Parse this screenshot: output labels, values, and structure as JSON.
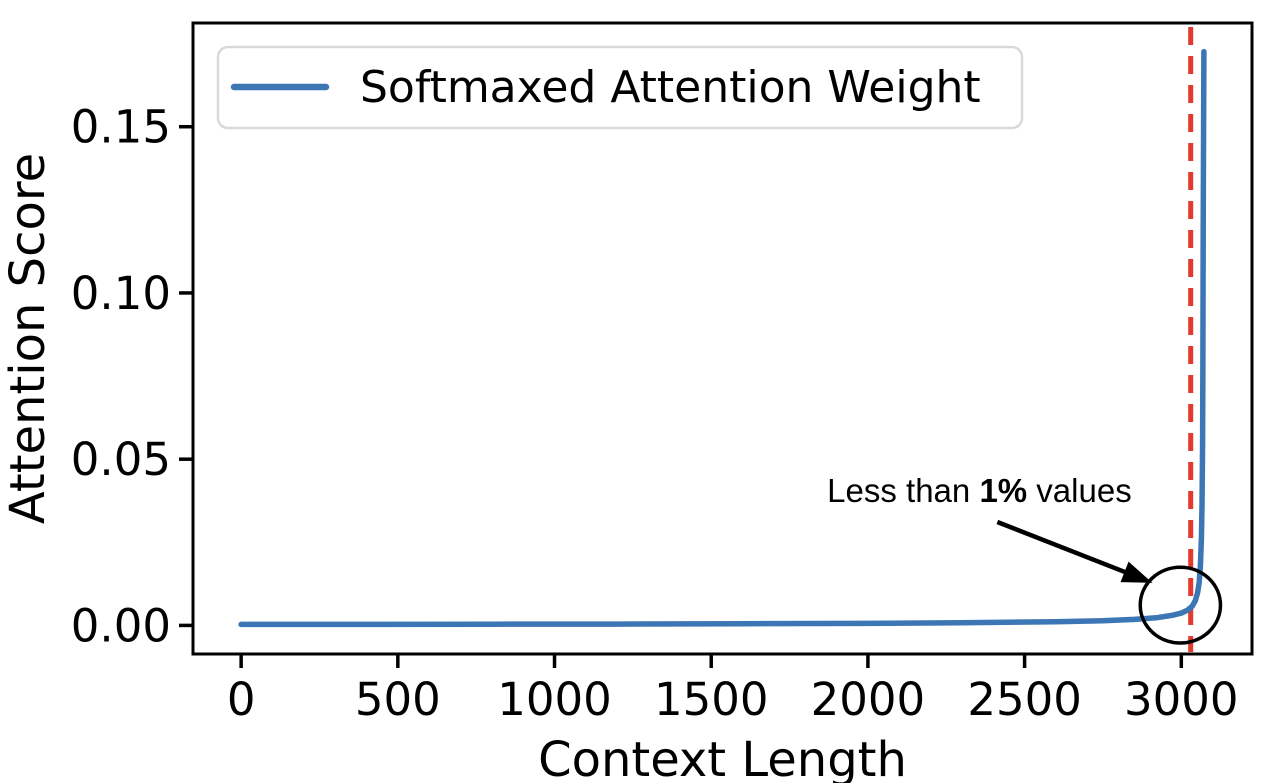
{
  "figure": {
    "background": "#ffffff",
    "axis_color": "#000000"
  },
  "chart_data": {
    "type": "line",
    "title": "",
    "xlabel": "Context Length",
    "ylabel": "Attention Score",
    "xlim": [
      -153.6,
      3225.6
    ],
    "ylim": [
      -0.0086,
      0.1812
    ],
    "x_ticks": [
      0,
      500,
      1000,
      1500,
      2000,
      2500,
      3000
    ],
    "y_ticks": [
      0.0,
      0.05,
      0.1,
      0.15
    ],
    "y_tick_labels": [
      "0.00",
      "0.05",
      "0.10",
      "0.15"
    ],
    "grid": false,
    "legend": {
      "position": "upper left",
      "entries": [
        {
          "label": "Softmaxed Attention Weight",
          "color": "#3d76b4"
        }
      ]
    },
    "series": [
      {
        "name": "Softmaxed Attention Weight",
        "color": "#3d76b4",
        "points": [
          [
            0,
            0.0003
          ],
          [
            400,
            0.0003
          ],
          [
            800,
            0.00035
          ],
          [
            1200,
            0.0004
          ],
          [
            1600,
            0.0005
          ],
          [
            2000,
            0.0006
          ],
          [
            2300,
            0.0008
          ],
          [
            2600,
            0.0011
          ],
          [
            2750,
            0.0014
          ],
          [
            2850,
            0.0018
          ],
          [
            2920,
            0.0023
          ],
          [
            2970,
            0.003
          ],
          [
            3000,
            0.0037
          ],
          [
            3020,
            0.0046
          ],
          [
            3035,
            0.0058
          ],
          [
            3045,
            0.0075
          ],
          [
            3052,
            0.0098
          ],
          [
            3057,
            0.013
          ],
          [
            3061,
            0.018
          ],
          [
            3064,
            0.026
          ],
          [
            3066,
            0.036
          ],
          [
            3068,
            0.055
          ],
          [
            3069,
            0.08
          ],
          [
            3070,
            0.12
          ],
          [
            3071,
            0.15
          ],
          [
            3072,
            0.1726
          ]
        ]
      }
    ],
    "vline": {
      "x": 3030,
      "color": "#e4392e",
      "style": "dashed"
    },
    "annotation": {
      "text_parts": [
        {
          "text": "Less than ",
          "bold": false
        },
        {
          "text": "1%",
          "bold": true
        },
        {
          "text": " values",
          "bold": false
        }
      ],
      "text_plain": "Less than 1% values",
      "text_anchor": [
        1870,
        0.0371
      ],
      "arrow_start": [
        2413,
        0.0311
      ],
      "arrow_end": [
        2908,
        0.0128
      ],
      "circle": {
        "cx": 2997,
        "cy": 0.0061,
        "rx": 128,
        "ry": 0.0114
      },
      "color": "#000000"
    }
  }
}
